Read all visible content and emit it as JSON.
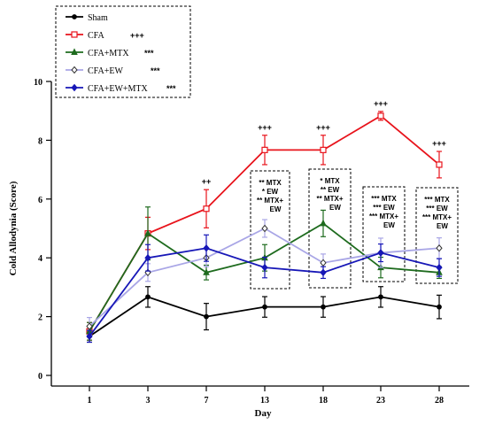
{
  "chart_data": {
    "type": "line",
    "title": "",
    "xlabel": "Day",
    "ylabel": "Cold Allodynia (Score)",
    "categories": [
      "1",
      "3",
      "7",
      "13",
      "18",
      "23",
      "28"
    ],
    "ylim": [
      0,
      10
    ],
    "yticks": [
      0,
      2,
      4,
      6,
      8,
      10
    ],
    "grid": false,
    "legend_position": "top-left",
    "series": [
      {
        "name": "Sham",
        "sig": "",
        "color": "#000000",
        "marker": "circle",
        "values": [
          1.33,
          2.67,
          2.0,
          2.33,
          2.33,
          2.67,
          2.33
        ],
        "errors": [
          0.2,
          0.35,
          0.45,
          0.35,
          0.35,
          0.35,
          0.4
        ]
      },
      {
        "name": "CFA",
        "sig": "+++",
        "color": "#e8131b",
        "marker": "square",
        "values": [
          1.5,
          4.83,
          5.67,
          7.67,
          7.67,
          8.83,
          7.17
        ],
        "errors": [
          0.3,
          0.55,
          0.65,
          0.5,
          0.5,
          0.15,
          0.45
        ]
      },
      {
        "name": "CFA+MTX",
        "sig": "***",
        "color": "#1e6b1e",
        "marker": "triangle",
        "values": [
          1.5,
          4.83,
          3.5,
          4.0,
          5.17,
          3.67,
          3.5
        ],
        "errors": [
          0.3,
          0.9,
          0.25,
          0.45,
          0.45,
          0.35,
          0.2
        ]
      },
      {
        "name": "CFA+EW",
        "sig": "***",
        "color": "#a9a6e6",
        "marker": "diamond-open",
        "values": [
          1.67,
          3.5,
          4.0,
          5.0,
          3.83,
          4.17,
          4.33
        ],
        "errors": [
          0.3,
          0.3,
          0.3,
          0.3,
          0.3,
          0.5,
          0.35
        ]
      },
      {
        "name": "CFA+EW+MTX",
        "sig": "***",
        "color": "#1717b7",
        "marker": "diamond",
        "values": [
          1.33,
          4.0,
          4.33,
          3.67,
          3.5,
          4.17,
          3.67
        ],
        "errors": [
          0.2,
          0.45,
          0.45,
          0.35,
          0.2,
          0.3,
          0.3
        ]
      }
    ],
    "annotations": {
      "cfa_vs_sham": [
        {
          "day": "7",
          "text": "++"
        },
        {
          "day": "13",
          "text": "+++"
        },
        {
          "day": "18",
          "text": "+++"
        },
        {
          "day": "23",
          "text": "+++"
        },
        {
          "day": "28",
          "text": "+++"
        }
      ],
      "boxes": [
        {
          "day": "13",
          "lines": [
            "** MTX",
            "* EW",
            "** MTX+",
            "EW"
          ]
        },
        {
          "day": "18",
          "lines": [
            "* MTX",
            "** EW",
            "** MTX+",
            "EW"
          ]
        },
        {
          "day": "23",
          "lines": [
            "*** MTX",
            "*** EW",
            "*** MTX+",
            "EW"
          ]
        },
        {
          "day": "28",
          "lines": [
            "*** MTX",
            "*** EW",
            "*** MTX+",
            "EW"
          ]
        }
      ]
    }
  }
}
